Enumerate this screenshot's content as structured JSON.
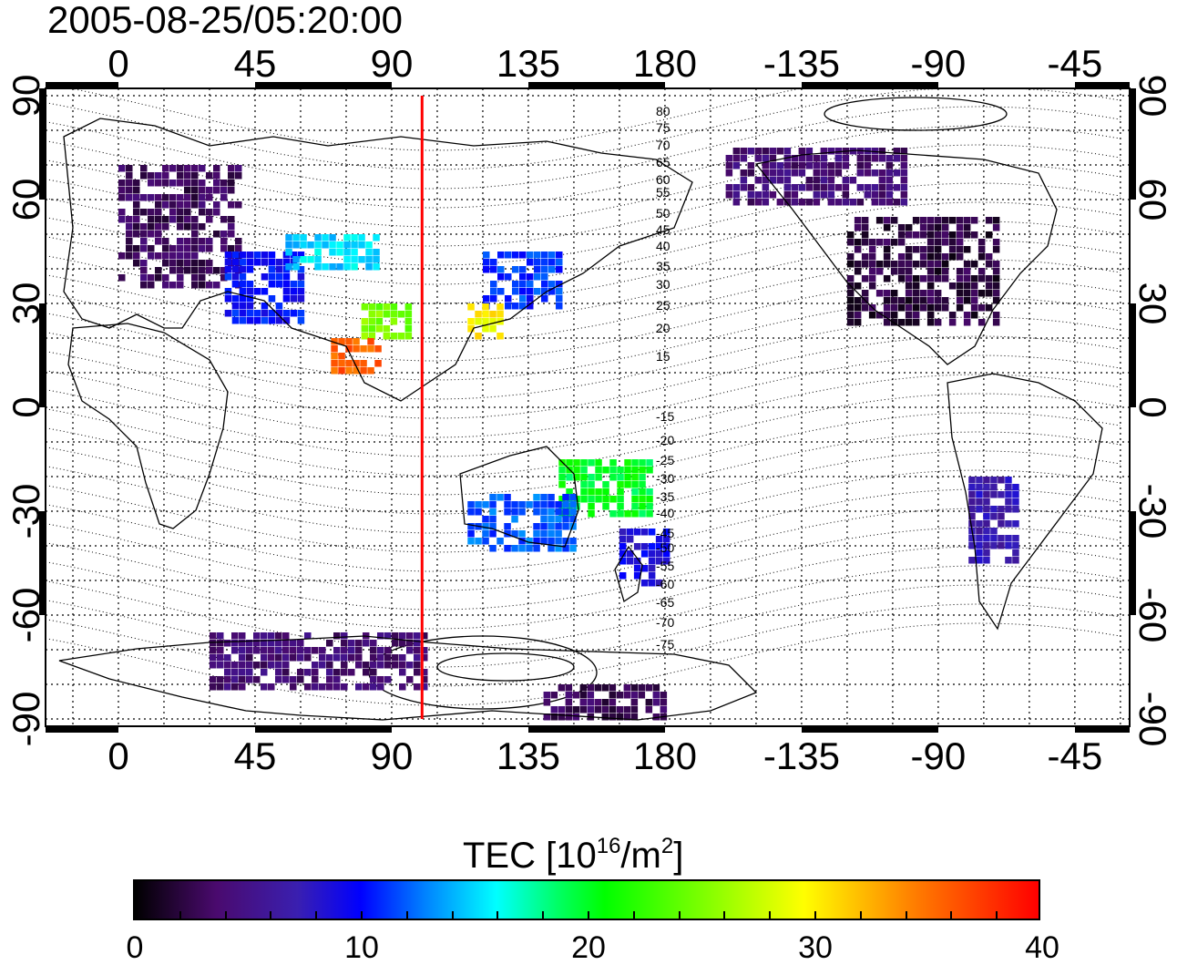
{
  "title": "2005-08-25/05:20:00",
  "map": {
    "x_ticks_top": [
      "0",
      "45",
      "90",
      "135",
      "180",
      "-135",
      "-90",
      "-45"
    ],
    "x_ticks_bottom": [
      "0",
      "45",
      "90",
      "135",
      "180",
      "-135",
      "-90",
      "-45"
    ],
    "y_ticks_left": [
      "90",
      "60",
      "30",
      "0",
      "-30",
      "-60",
      "-90"
    ],
    "y_ticks_right": [
      "90",
      "60",
      "30",
      "0",
      "-30",
      "-60",
      "-90"
    ],
    "contour_labels_north": [
      "80",
      "75",
      "70",
      "65",
      "60",
      "55",
      "50",
      "45",
      "40",
      "35",
      "30",
      "25",
      "20",
      "15"
    ],
    "contour_labels_south": [
      "-15",
      "-20",
      "-25",
      "-30",
      "-35",
      "-40",
      "-45",
      "-50",
      "-55",
      "-60",
      "-65",
      "-70",
      "-75"
    ],
    "marker_longitude": 100,
    "marker_color": "#ff0000"
  },
  "colorbar": {
    "title_main": "TEC  [10",
    "title_exp1": "16",
    "title_mid": "/m",
    "title_exp2": "2",
    "title_end": "]",
    "ticks": [
      "0",
      "10",
      "20",
      "30",
      "40"
    ]
  },
  "chart_data": {
    "type": "heatmap",
    "title": "2005-08-25/05:20:00",
    "x_ticks": [
      "0",
      "45",
      "90",
      "135",
      "180",
      "-135",
      "-90",
      "-45"
    ],
    "y_ticks": [
      "90",
      "60",
      "30",
      "0",
      "-30",
      "-60",
      "-90"
    ],
    "xlim": [
      -25,
      335
    ],
    "ylim": [
      -90,
      90
    ],
    "colorbar_range": [
      0,
      40
    ],
    "colorbar_label": "TEC  [10^16/m^2]",
    "regions": [
      {
        "lon": [
          0,
          40
        ],
        "lat": [
          35,
          70
        ],
        "tec": 3
      },
      {
        "lon": [
          35,
          60
        ],
        "lat": [
          25,
          45
        ],
        "tec": 10
      },
      {
        "lon": [
          55,
          85
        ],
        "lat": [
          40,
          50
        ],
        "tec": 15
      },
      {
        "lon": [
          80,
          95
        ],
        "lat": [
          20,
          30
        ],
        "tec": 25
      },
      {
        "lon": [
          70,
          85
        ],
        "lat": [
          10,
          20
        ],
        "tec": 36
      },
      {
        "lon": [
          120,
          145
        ],
        "lat": [
          30,
          45
        ],
        "tec": 11
      },
      {
        "lon": [
          115,
          125
        ],
        "lat": [
          20,
          30
        ],
        "tec": 30
      },
      {
        "lon": [
          145,
          175
        ],
        "lat": [
          -30,
          -15
        ],
        "tec": 20
      },
      {
        "lon": [
          165,
          180
        ],
        "lat": [
          -50,
          -35
        ],
        "tec": 9
      },
      {
        "lon": [
          115,
          150
        ],
        "lat": [
          -40,
          -25
        ],
        "tec": 12
      },
      {
        "lon": [
          240,
          290
        ],
        "lat": [
          25,
          55
        ],
        "tec": 2
      },
      {
        "lon": [
          200,
          260
        ],
        "lat": [
          60,
          75
        ],
        "tec": 4
      },
      {
        "lon": [
          280,
          295
        ],
        "lat": [
          -45,
          -20
        ],
        "tec": 7
      },
      {
        "lon": [
          30,
          100
        ],
        "lat": [
          -80,
          -65
        ],
        "tec": 4
      },
      {
        "lon": [
          140,
          180
        ],
        "lat": [
          -90,
          -80
        ],
        "tec": 3
      }
    ]
  }
}
